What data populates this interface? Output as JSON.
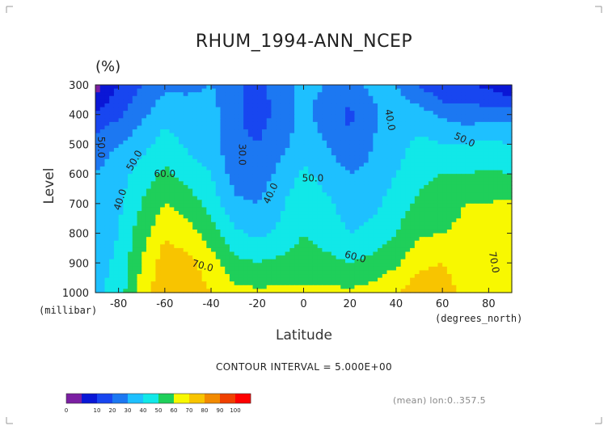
{
  "figure": {
    "title": "RHUM_1994-ANN_NCEP",
    "units": "(%)",
    "ylabel": "Level",
    "xlabel": "Latitude",
    "y_unit_note": "(millibar)",
    "x_unit_note": "(degrees_north)",
    "contour_interval": "CONTOUR INTERVAL = 5.000E+00",
    "mean_note": "(mean) lon:0..357.5"
  },
  "chart_data": {
    "type": "heatmap",
    "title": "RHUM_1994-ANN_NCEP",
    "xlabel": "Latitude",
    "ylabel": "Level",
    "x": [
      -90,
      -80,
      -70,
      -60,
      -50,
      -40,
      -30,
      -20,
      -10,
      0,
      10,
      20,
      30,
      40,
      50,
      60,
      70,
      80,
      90
    ],
    "y": [
      300,
      400,
      500,
      600,
      700,
      800,
      900,
      1000
    ],
    "z": [
      [
        5,
        20,
        30,
        38,
        38,
        40,
        35,
        25,
        36,
        42,
        40,
        35,
        43,
        40,
        30,
        20,
        20,
        18,
        10
      ],
      [
        22,
        28,
        38,
        46,
        44,
        44,
        32,
        25,
        34,
        43,
        35,
        28,
        38,
        45,
        44,
        38,
        35,
        35,
        36
      ],
      [
        35,
        40,
        46,
        55,
        48,
        43,
        33,
        30,
        37,
        45,
        40,
        32,
        40,
        46,
        53,
        50,
        50,
        52,
        50
      ],
      [
        40,
        45,
        55,
        62,
        56,
        50,
        36,
        34,
        43,
        52,
        46,
        40,
        42,
        50,
        57,
        60,
        60,
        62,
        60
      ],
      [
        42,
        48,
        60,
        70,
        65,
        56,
        42,
        40,
        48,
        58,
        52,
        45,
        47,
        55,
        62,
        66,
        70,
        70,
        72
      ],
      [
        44,
        50,
        66,
        78,
        74,
        65,
        52,
        48,
        52,
        60,
        55,
        50,
        53,
        60,
        68,
        70,
        72,
        74,
        74
      ],
      [
        46,
        52,
        70,
        86,
        84,
        74,
        63,
        60,
        63,
        64,
        63,
        60,
        63,
        68,
        78,
        80,
        75,
        80,
        78
      ],
      [
        48,
        54,
        75,
        88,
        87,
        80,
        73,
        72,
        72,
        72,
        72,
        72,
        74,
        80,
        86,
        84,
        78,
        80,
        80
      ]
    ],
    "xlim": [
      -90,
      90
    ],
    "ylim": [
      1000,
      300
    ],
    "xticks": [
      "-80",
      "-60",
      "-40",
      "-20",
      "0",
      "20",
      "40",
      "60",
      "80"
    ],
    "yticks": [
      "300",
      "400",
      "500",
      "600",
      "700",
      "800",
      "900",
      "1000"
    ],
    "contour_levels": [
      0,
      10,
      20,
      30,
      40,
      50,
      60,
      70,
      80,
      90,
      100
    ],
    "colorbar_colors": [
      "#7b1fa2",
      "#0a17d6",
      "#1846f0",
      "#1c78f2",
      "#1ec0ff",
      "#11e8e8",
      "#1fcf5a",
      "#f8f800",
      "#f8c400",
      "#f28a00",
      "#f04000",
      "#ff0000"
    ],
    "colorbar_ticks": [
      "0",
      "10",
      "20",
      "30",
      "40",
      "50",
      "60",
      "70",
      "80",
      "90",
      "100"
    ],
    "contour_labels": [
      "50.0",
      "50.0",
      "60.0",
      "40.0",
      "30.0",
      "40.0",
      "50.0",
      "40.0",
      "50.0",
      "60.0",
      "70.0",
      "70.0"
    ]
  }
}
